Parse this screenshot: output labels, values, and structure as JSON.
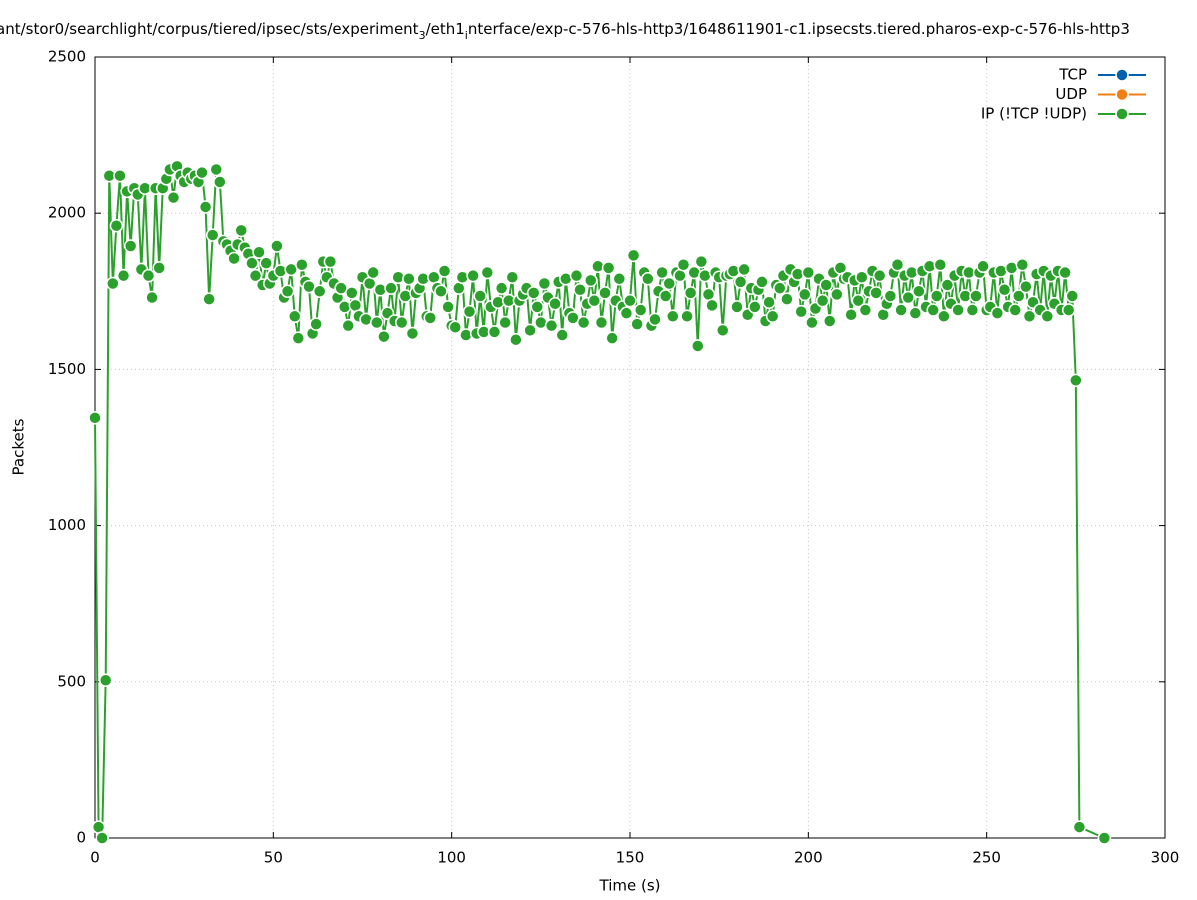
{
  "chart_data": {
    "type": "line",
    "title": [
      "ant/stor0/searchlight/corpus/tiered/ipsec/sts/experiment",
      "3",
      "/eth1",
      "i",
      "nterface/exp-c-576-hls-http3/1648611901-c1.ipsecsts.tiered.pharos-exp-c-576-hls-http3"
    ],
    "x_label": "Time (s)",
    "y_label": "Packets",
    "xlim": [
      0,
      300
    ],
    "xticks": [
      0,
      50,
      100,
      150,
      200,
      250,
      300
    ],
    "ylim": [
      0,
      2500
    ],
    "yticks": [
      0,
      500,
      1000,
      1500,
      2000,
      2500
    ],
    "grid": true,
    "legend": "top-right",
    "series": [
      {
        "name": "TCP",
        "color": "#0060ad",
        "x": [],
        "values": []
      },
      {
        "name": "UDP",
        "color": "#f07f17",
        "x": [],
        "values": []
      },
      {
        "name": "IP (!TCP  !UDP)",
        "color": "#2ca02c",
        "x": [
          0,
          1,
          2,
          3,
          4,
          5,
          6,
          7,
          8,
          9,
          10,
          11,
          12,
          13,
          14,
          15,
          16,
          17,
          18,
          19,
          20,
          21,
          22,
          23,
          24,
          25,
          26,
          27,
          28,
          29,
          30,
          31,
          32,
          33,
          34,
          35,
          36,
          37,
          38,
          39,
          40,
          41,
          42,
          43,
          44,
          45,
          46,
          47,
          48,
          49,
          50,
          51,
          52,
          53,
          54,
          55,
          56,
          57,
          58,
          59,
          60,
          61,
          62,
          63,
          64,
          65,
          66,
          67,
          68,
          69,
          70,
          71,
          72,
          73,
          74,
          75,
          76,
          77,
          78,
          79,
          80,
          81,
          82,
          83,
          84,
          85,
          86,
          87,
          88,
          89,
          90,
          91,
          92,
          93,
          94,
          95,
          96,
          97,
          98,
          99,
          100,
          101,
          102,
          103,
          104,
          105,
          106,
          107,
          108,
          109,
          110,
          111,
          112,
          113,
          114,
          115,
          116,
          117,
          118,
          119,
          120,
          121,
          122,
          123,
          124,
          125,
          126,
          127,
          128,
          129,
          130,
          131,
          132,
          133,
          134,
          135,
          136,
          137,
          138,
          139,
          140,
          141,
          142,
          143,
          144,
          145,
          146,
          147,
          148,
          149,
          150,
          151,
          152,
          153,
          154,
          155,
          156,
          157,
          158,
          159,
          160,
          161,
          162,
          163,
          164,
          165,
          166,
          167,
          168,
          169,
          170,
          171,
          172,
          173,
          174,
          175,
          176,
          177,
          178,
          179,
          180,
          181,
          182,
          183,
          184,
          185,
          186,
          187,
          188,
          189,
          190,
          191,
          192,
          193,
          194,
          195,
          196,
          197,
          198,
          199,
          200,
          201,
          202,
          203,
          204,
          205,
          206,
          207,
          208,
          209,
          210,
          211,
          212,
          213,
          214,
          215,
          216,
          217,
          218,
          219,
          220,
          221,
          222,
          223,
          224,
          225,
          226,
          227,
          228,
          229,
          230,
          231,
          232,
          233,
          234,
          235,
          236,
          237,
          238,
          239,
          240,
          241,
          242,
          243,
          244,
          245,
          246,
          247,
          248,
          249,
          250,
          251,
          252,
          253,
          254,
          255,
          256,
          257,
          258,
          259,
          260,
          261,
          262,
          263,
          264,
          265,
          266,
          267,
          268,
          269,
          270,
          271,
          272,
          273,
          274,
          275,
          276,
          283
        ],
        "values": [
          1345,
          35,
          0,
          505,
          2120,
          1775,
          1960,
          2120,
          1800,
          2070,
          1895,
          2080,
          2060,
          1820,
          2080,
          1800,
          1730,
          2080,
          1825,
          2080,
          2110,
          2140,
          2050,
          2150,
          2120,
          2100,
          2130,
          2110,
          2120,
          2100,
          2130,
          2020,
          1725,
          1930,
          2140,
          2100,
          1910,
          1900,
          1880,
          1855,
          1900,
          1945,
          1890,
          1870,
          1840,
          1800,
          1875,
          1770,
          1840,
          1775,
          1800,
          1895,
          1815,
          1730,
          1750,
          1820,
          1670,
          1600,
          1835,
          1780,
          1765,
          1615,
          1645,
          1750,
          1845,
          1795,
          1845,
          1775,
          1730,
          1760,
          1700,
          1640,
          1745,
          1705,
          1670,
          1795,
          1660,
          1775,
          1810,
          1650,
          1755,
          1605,
          1680,
          1760,
          1655,
          1795,
          1650,
          1735,
          1790,
          1615,
          1745,
          1760,
          1790,
          1670,
          1665,
          1795,
          1760,
          1750,
          1815,
          1700,
          1640,
          1635,
          1760,
          1795,
          1610,
          1685,
          1800,
          1615,
          1735,
          1620,
          1810,
          1700,
          1620,
          1715,
          1760,
          1650,
          1720,
          1795,
          1595,
          1720,
          1740,
          1760,
          1625,
          1745,
          1700,
          1650,
          1775,
          1730,
          1640,
          1710,
          1780,
          1610,
          1790,
          1680,
          1665,
          1800,
          1755,
          1650,
          1710,
          1785,
          1720,
          1830,
          1650,
          1745,
          1825,
          1600,
          1720,
          1790,
          1700,
          1680,
          1720,
          1865,
          1645,
          1690,
          1810,
          1790,
          1640,
          1660,
          1750,
          1810,
          1735,
          1775,
          1670,
          1810,
          1800,
          1835,
          1670,
          1745,
          1810,
          1575,
          1845,
          1800,
          1740,
          1705,
          1810,
          1795,
          1625,
          1800,
          1805,
          1815,
          1700,
          1780,
          1820,
          1675,
          1760,
          1700,
          1755,
          1780,
          1655,
          1715,
          1670,
          1770,
          1760,
          1800,
          1725,
          1820,
          1780,
          1805,
          1685,
          1740,
          1810,
          1650,
          1695,
          1790,
          1720,
          1770,
          1655,
          1810,
          1740,
          1825,
          1790,
          1795,
          1675,
          1785,
          1720,
          1795,
          1690,
          1750,
          1815,
          1745,
          1800,
          1675,
          1710,
          1735,
          1810,
          1835,
          1690,
          1800,
          1730,
          1810,
          1680,
          1750,
          1815,
          1700,
          1830,
          1690,
          1735,
          1835,
          1670,
          1770,
          1710,
          1800,
          1690,
          1815,
          1735,
          1810,
          1690,
          1735,
          1810,
          1830,
          1690,
          1700,
          1810,
          1680,
          1815,
          1755,
          1700,
          1825,
          1690,
          1735,
          1835,
          1765,
          1670,
          1715,
          1805,
          1690,
          1815,
          1670,
          1800,
          1710,
          1815,
          1690,
          1810,
          1690,
          1735,
          1465,
          35,
          0
        ]
      }
    ]
  }
}
